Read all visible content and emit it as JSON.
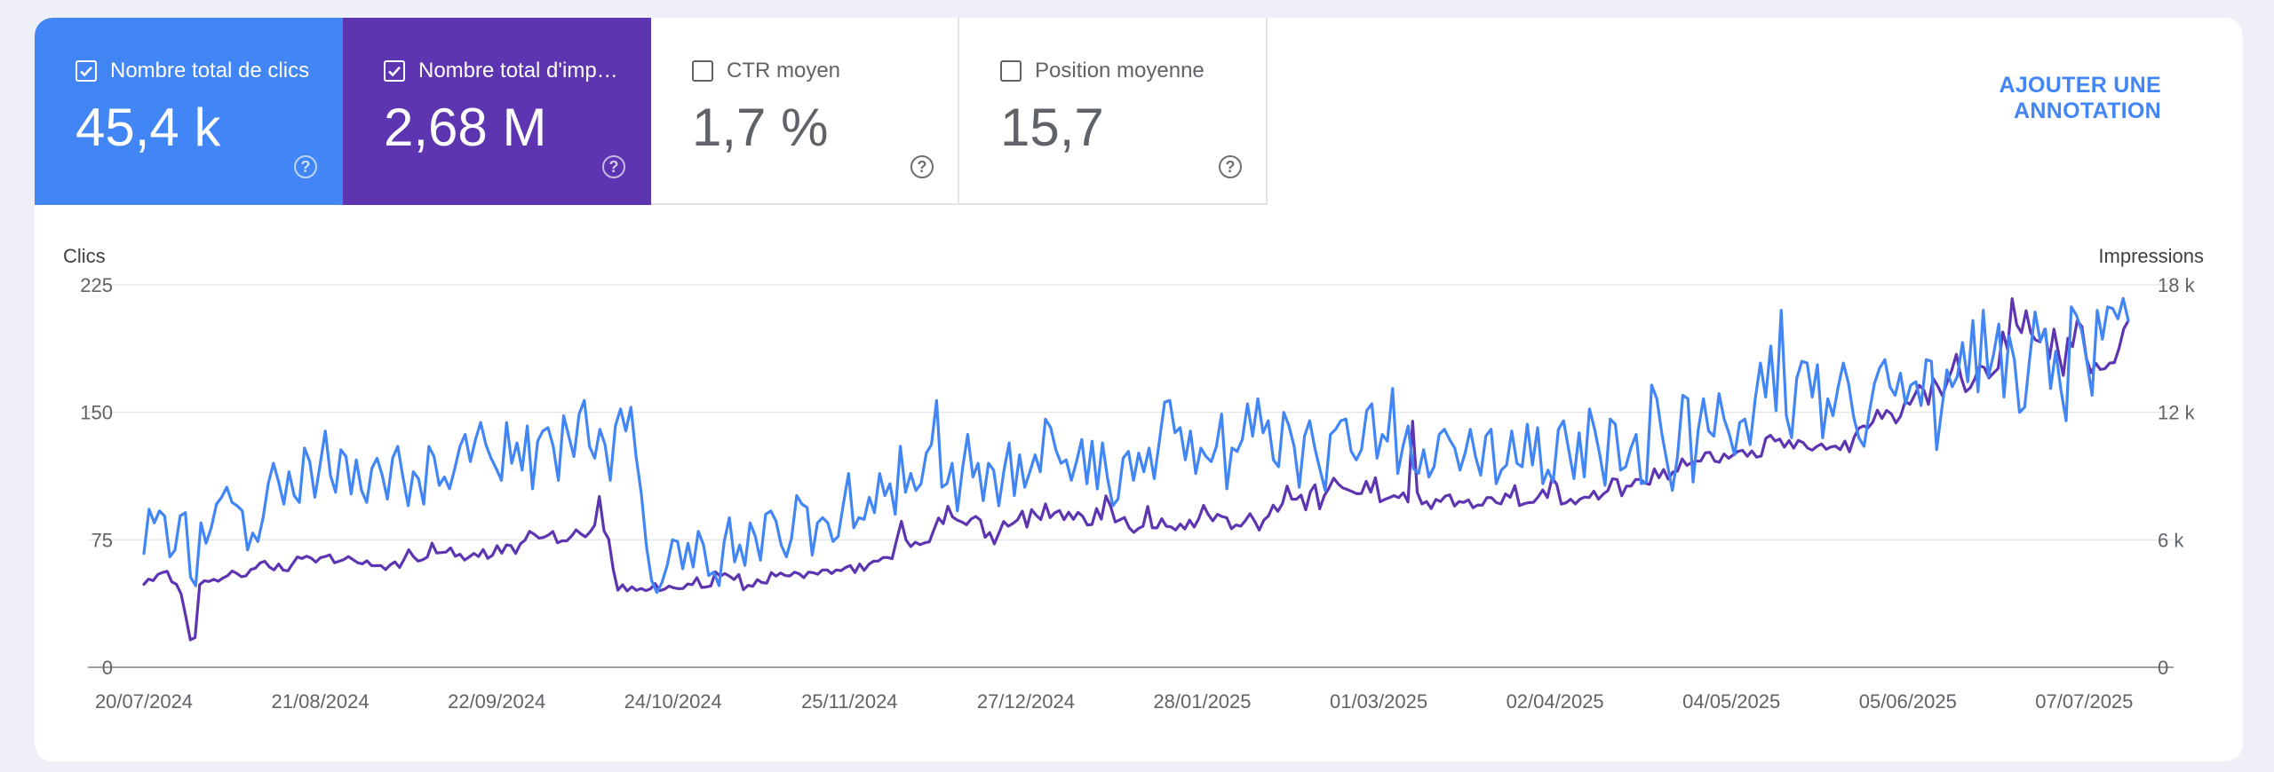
{
  "tabs": [
    {
      "label": "Nombre total de clics",
      "value": "45,4 k",
      "checked": true,
      "color": "#4285f4"
    },
    {
      "label": "Nombre total d'impressions",
      "value": "2,68 M",
      "checked": true,
      "color": "#5e35b1"
    },
    {
      "label": "CTR moyen",
      "value": "1,7 %",
      "checked": false
    },
    {
      "label": "Position moyenne",
      "value": "15,7",
      "checked": false
    }
  ],
  "help_glyph": "?",
  "annotation_button": "AJOUTER UNE ANNOTATION",
  "chart_data": {
    "type": "line",
    "left_axis": {
      "title": "Clics",
      "ticks": [
        "0",
        "75",
        "150",
        "225"
      ],
      "range": [
        0,
        225
      ]
    },
    "right_axis": {
      "title": "Impressions",
      "ticks": [
        "0",
        "6 k",
        "12 k",
        "18 k"
      ],
      "range": [
        0,
        18000
      ]
    },
    "x_ticks": [
      "20/07/2024",
      "21/08/2024",
      "22/09/2024",
      "24/10/2024",
      "25/11/2024",
      "27/12/2024",
      "28/01/2025",
      "01/03/2025",
      "02/04/2025",
      "04/05/2025",
      "05/06/2025",
      "07/07/2025"
    ],
    "x_start": "20/07/2024",
    "x_end": "15/07/2025",
    "grid": true,
    "series": [
      {
        "axis": "left",
        "color": "#4285f4",
        "values": [
          67,
          93,
          85,
          92,
          89,
          65,
          69,
          89,
          91,
          53,
          48,
          85,
          73,
          82,
          96,
          100,
          106,
          97,
          95,
          92,
          69,
          79,
          74,
          88,
          108,
          120,
          109,
          96,
          115,
          101,
          97,
          129,
          121,
          100,
          119,
          139,
          113,
          103,
          128,
          124,
          102,
          122,
          104,
          97,
          117,
          123,
          113,
          99,
          123,
          130,
          112,
          95,
          115,
          111,
          96,
          130,
          124,
          107,
          112,
          105,
          117,
          130,
          137,
          121,
          134,
          144,
          131,
          123,
          117,
          110,
          144,
          120,
          132,
          116,
          142,
          105,
          133,
          139,
          141,
          130,
          110,
          148,
          136,
          124,
          149,
          157,
          130,
          123,
          140,
          131,
          110,
          142,
          152,
          139,
          153,
          124,
          102,
          71,
          51,
          44,
          50,
          60,
          75,
          74,
          58,
          73,
          59,
          80,
          72,
          54,
          56,
          48,
          74,
          88,
          62,
          72,
          60,
          85,
          77,
          63,
          90,
          92,
          86,
          72,
          65,
          76,
          101,
          96,
          94,
          66,
          85,
          88,
          85,
          74,
          77,
          96,
          114,
          82,
          88,
          87,
          100,
          91,
          114,
          101,
          108,
          90,
          130,
          103,
          114,
          104,
          108,
          126,
          131,
          157,
          106,
          108,
          120,
          92,
          117,
          137,
          112,
          120,
          98,
          120,
          116,
          95,
          116,
          132,
          101,
          125,
          106,
          115,
          125,
          115,
          146,
          141,
          128,
          120,
          122,
          110,
          121,
          134,
          108,
          133,
          105,
          132,
          111,
          95,
          99,
          123,
          127,
          110,
          126,
          115,
          129,
          111,
          133,
          156,
          157,
          138,
          141,
          122,
          139,
          114,
          129,
          124,
          121,
          130,
          149,
          105,
          129,
          127,
          134,
          155,
          136,
          158,
          138,
          145,
          122,
          118,
          150,
          142,
          130,
          106,
          136,
          145,
          129,
          116,
          104,
          137,
          140,
          145,
          146,
          127,
          122,
          128,
          151,
          155,
          123,
          137,
          133,
          164,
          114,
          130,
          142,
          117,
          114,
          128,
          112,
          118,
          137,
          140,
          134,
          129,
          116,
          126,
          140,
          124,
          113,
          136,
          140,
          108,
          116,
          119,
          139,
          120,
          118,
          143,
          119,
          141,
          108,
          116,
          109,
          140,
          145,
          128,
          111,
          138,
          112,
          152,
          140,
          125,
          107,
          146,
          143,
          116,
          118,
          129,
          137,
          108,
          109,
          166,
          158,
          137,
          120,
          104,
          124,
          160,
          158,
          109,
          140,
          158,
          139,
          136,
          161,
          146,
          137,
          125,
          144,
          146,
          131,
          158,
          179,
          159,
          189,
          151,
          210,
          148,
          135,
          170,
          180,
          179,
          159,
          178,
          135,
          158,
          148,
          165,
          179,
          167,
          147,
          135,
          130,
          150,
          167,
          176,
          181,
          165,
          160,
          173,
          155,
          166,
          168,
          154,
          181,
          180,
          128,
          152,
          175,
          165,
          171,
          191,
          168,
          204,
          162,
          210,
          171,
          184,
          202,
          159,
          195,
          181,
          150,
          153,
          183,
          209,
          192,
          199,
          164,
          186,
          163,
          145,
          212,
          207,
          198,
          180,
          160,
          210,
          193,
          212,
          211,
          205,
          217,
          204
        ]
      },
      {
        "axis": "right",
        "color": "#5e35b1",
        "values": [
          3900,
          4150,
          4080,
          4370,
          4460,
          4520,
          4020,
          3910,
          3450,
          2400,
          1290,
          1400,
          3890,
          4070,
          4040,
          4140,
          4050,
          4200,
          4310,
          4530,
          4420,
          4260,
          4310,
          4600,
          4670,
          4910,
          4990,
          4720,
          4580,
          4860,
          4570,
          4540,
          4870,
          5190,
          5120,
          5230,
          5140,
          4950,
          5160,
          5210,
          5290,
          4920,
          4990,
          5070,
          5210,
          5070,
          4920,
          4870,
          5010,
          4780,
          4780,
          4790,
          4600,
          4820,
          4960,
          4700,
          5090,
          5530,
          5210,
          5000,
          5060,
          5190,
          5840,
          5380,
          5400,
          5420,
          5620,
          5230,
          5320,
          5050,
          5190,
          5360,
          5210,
          5540,
          5130,
          5270,
          5720,
          5370,
          5760,
          5720,
          5360,
          5810,
          5980,
          6400,
          6260,
          6080,
          6110,
          6220,
          6390,
          5860,
          5950,
          5950,
          6170,
          6470,
          6280,
          6140,
          6370,
          6690,
          8040,
          6420,
          6040,
          4600,
          3630,
          3880,
          3590,
          3790,
          3620,
          3710,
          3610,
          3690,
          3940,
          3610,
          3670,
          3820,
          3740,
          3700,
          3710,
          3920,
          3890,
          4220,
          3760,
          3780,
          3830,
          4490,
          4290,
          4410,
          4290,
          4130,
          4370,
          3650,
          3860,
          3810,
          4120,
          3990,
          3960,
          4460,
          4290,
          4440,
          4320,
          4300,
          4480,
          4400,
          4220,
          4480,
          4450,
          4380,
          4580,
          4580,
          4410,
          4580,
          4550,
          4700,
          4790,
          4460,
          4860,
          4560,
          4850,
          4990,
          5000,
          5160,
          5170,
          5110,
          6030,
          6870,
          5990,
          5680,
          5890,
          5770,
          5860,
          5900,
          6480,
          7030,
          6760,
          7580,
          7080,
          6930,
          6840,
          6710,
          6980,
          7100,
          6930,
          6120,
          6340,
          5810,
          6330,
          6860,
          6640,
          6770,
          6940,
          7350,
          6600,
          7420,
          7160,
          6950,
          7690,
          7040,
          7270,
          7380,
          6950,
          7300,
          6960,
          7290,
          7110,
          6700,
          6720,
          7470,
          6970,
          8070,
          7590,
          6840,
          6940,
          7050,
          6570,
          6350,
          6530,
          6640,
          7570,
          6560,
          6560,
          6990,
          6640,
          6610,
          6460,
          6740,
          6510,
          6930,
          6600,
          7000,
          7620,
          7200,
          6890,
          7200,
          7090,
          7040,
          6520,
          6700,
          6640,
          6900,
          7230,
          6880,
          6460,
          6930,
          7130,
          7630,
          7340,
          7710,
          8530,
          7910,
          7910,
          8100,
          7410,
          8260,
          8590,
          7460,
          8080,
          8430,
          8900,
          8630,
          8440,
          8360,
          8270,
          8170,
          8180,
          8750,
          8240,
          8920,
          7790,
          7900,
          7980,
          8080,
          7980,
          8210,
          7780,
          11580,
          8230,
          7690,
          7800,
          7470,
          7900,
          7800,
          8050,
          8120,
          7590,
          7800,
          7760,
          7880,
          7510,
          7640,
          7630,
          7990,
          7980,
          7750,
          7690,
          8160,
          8000,
          8550,
          7610,
          7700,
          7750,
          7760,
          8020,
          8350,
          7990,
          8930,
          8610,
          7680,
          7740,
          7910,
          7690,
          7910,
          8010,
          7990,
          8290,
          7910,
          8150,
          8310,
          8870,
          8840,
          8070,
          8530,
          8530,
          8840,
          8840,
          8670,
          8610,
          9340,
          8920,
          9310,
          8860,
          9190,
          9230,
          9810,
          9500,
          9630,
          9700,
          9710,
          10100,
          10110,
          9700,
          9650,
          10040,
          9840,
          10000,
          10160,
          10210,
          9930,
          10180,
          9890,
          9940,
          10770,
          10920,
          10650,
          10740,
          10360,
          10670,
          10310,
          10680,
          10580,
          10320,
          10220,
          10400,
          10510,
          10260,
          10370,
          10410,
          10240,
          10650,
          10140,
          10830,
          11250,
          11360,
          11270,
          11530,
          12100,
          11710,
          12090,
          11930,
          11500,
          11820,
          12520,
          12380,
          12800,
          13270,
          13050,
          12380,
          13600,
          13230,
          12780,
          13420,
          13980,
          14730,
          13650,
          12970,
          13160,
          13590,
          14190,
          14110,
          13620,
          13850,
          14070,
          15780,
          14970,
          17350,
          16120,
          15750,
          16780,
          15750,
          15410,
          15320,
          15900,
          14510,
          15910,
          14770,
          13740,
          15490,
          15090,
          16310,
          16040,
          14530,
          13860,
          14310,
          14010,
          14060,
          14320,
          14340,
          15010,
          15920,
          16320
        ]
      }
    ]
  }
}
